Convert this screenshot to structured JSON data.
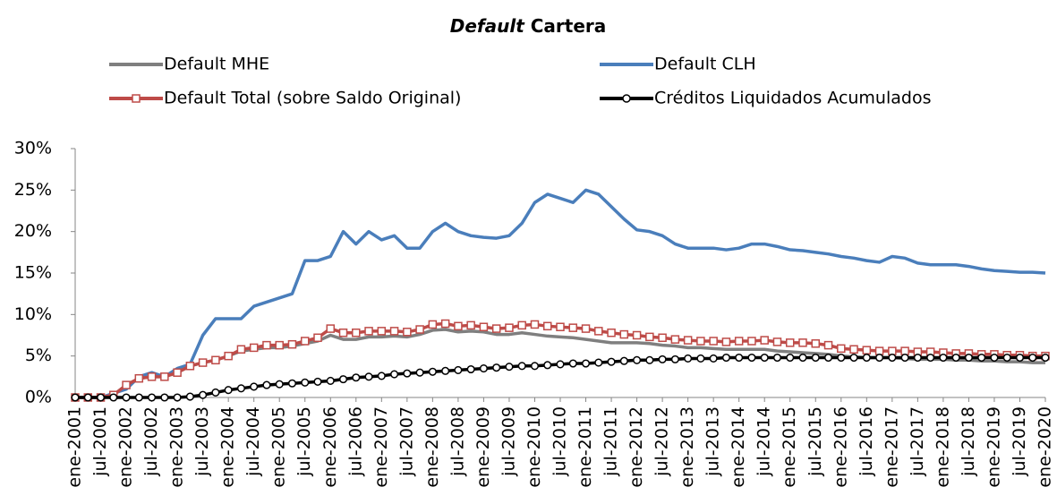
{
  "chart_data": {
    "type": "line",
    "title": [
      "Default",
      "Cartera"
    ],
    "categories": [
      "ene-2001",
      null,
      "jul-2001",
      null,
      "ene-2002",
      null,
      "jul-2002",
      null,
      "ene-2003",
      null,
      "jul-2003",
      null,
      "ene-2004",
      null,
      "jul-2004",
      null,
      "ene-2005",
      null,
      "jul-2005",
      null,
      "ene-2006",
      null,
      "jul-2006",
      null,
      "ene-2007",
      null,
      "jul-2007",
      null,
      "ene-2008",
      null,
      "jul-2008",
      null,
      "ene-2009",
      null,
      "jul-2009",
      null,
      "ene-2010",
      null,
      "jul-2010",
      null,
      "ene-2011",
      null,
      "jul-2011",
      null,
      "ene-2012",
      null,
      "jul-2012",
      null,
      "ene-2013",
      null,
      "jul-2013",
      null,
      "ene-2014",
      null,
      "jul-2014",
      null,
      "ene-2015",
      null,
      "jul-2015",
      null,
      "ene-2016",
      null,
      "jul-2016",
      null,
      "ene-2017",
      null,
      "jul-2017",
      null,
      "ene-2018",
      null,
      "jul-2018",
      null,
      "ene-2019",
      null,
      "jul-2019",
      null,
      "ene-2020"
    ],
    "series": [
      {
        "name": "Default MHE",
        "color": "#7f7f7f",
        "marker": "none",
        "values": [
          0,
          0,
          0,
          0.3,
          1.5,
          2.3,
          2.5,
          2.5,
          3,
          3.8,
          4.2,
          4.5,
          5,
          5.6,
          5.8,
          6,
          6,
          6.2,
          6.5,
          6.8,
          7.5,
          7,
          7,
          7.3,
          7.3,
          7.4,
          7.3,
          7.6,
          8.1,
          8.2,
          7.9,
          8,
          7.9,
          7.6,
          7.6,
          7.8,
          7.6,
          7.4,
          7.3,
          7.2,
          7,
          6.8,
          6.6,
          6.6,
          6.6,
          6.5,
          6.3,
          6.2,
          6,
          6,
          5.9,
          5.8,
          5.8,
          5.8,
          5.8,
          5.6,
          5.5,
          5.4,
          5.3,
          5.2,
          5,
          4.9,
          4.8,
          4.8,
          4.8,
          4.7,
          4.6,
          4.6,
          4.6,
          4.5,
          4.5,
          4.4,
          4.4,
          4.3,
          4.3,
          4.2,
          4.2
        ]
      },
      {
        "name": "Default CLH",
        "color": "#4a7ebb",
        "marker": "none",
        "values": [
          0,
          0,
          0,
          0.5,
          1,
          2.5,
          3,
          2.5,
          3.5,
          4,
          7.5,
          9.5,
          9.5,
          9.5,
          11,
          11.5,
          12,
          12.5,
          16.5,
          16.5,
          17,
          20,
          18.5,
          20,
          19,
          19.5,
          18,
          18,
          20,
          21,
          20,
          19.5,
          19.3,
          19.2,
          19.5,
          21,
          23.5,
          24.5,
          24,
          23.5,
          25,
          24.5,
          23,
          21.5,
          20.2,
          20,
          19.5,
          18.5,
          18,
          18,
          18,
          17.8,
          18,
          18.5,
          18.5,
          18.2,
          17.8,
          17.7,
          17.5,
          17.3,
          17,
          16.8,
          16.5,
          16.3,
          17,
          16.8,
          16.2,
          16,
          16,
          16,
          15.8,
          15.5,
          15.3,
          15.2,
          15.1,
          15.1,
          15
        ]
      },
      {
        "name": "Default Total (sobre Saldo Original)",
        "color": "#be4b48",
        "marker": "square",
        "values": [
          0,
          0,
          0,
          0.3,
          1.5,
          2.3,
          2.5,
          2.5,
          3,
          3.8,
          4.2,
          4.5,
          5,
          5.8,
          6,
          6.3,
          6.3,
          6.4,
          6.8,
          7.2,
          8.3,
          7.8,
          7.8,
          8,
          8,
          8,
          7.9,
          8.2,
          8.8,
          8.9,
          8.6,
          8.7,
          8.5,
          8.3,
          8.4,
          8.7,
          8.8,
          8.6,
          8.5,
          8.4,
          8.3,
          8,
          7.8,
          7.6,
          7.5,
          7.3,
          7.2,
          7,
          6.9,
          6.8,
          6.8,
          6.7,
          6.8,
          6.8,
          6.9,
          6.7,
          6.6,
          6.6,
          6.5,
          6.3,
          5.9,
          5.8,
          5.7,
          5.6,
          5.6,
          5.6,
          5.5,
          5.5,
          5.4,
          5.3,
          5.3,
          5.2,
          5.2,
          5.1,
          5.1,
          5,
          5
        ]
      },
      {
        "name": "Créditos Liquidados Acumulados",
        "color": "#000000",
        "marker": "circle",
        "values": [
          0,
          0,
          0,
          0,
          0,
          0,
          0,
          0,
          0,
          0.1,
          0.3,
          0.6,
          0.9,
          1.1,
          1.3,
          1.5,
          1.6,
          1.7,
          1.8,
          1.9,
          2,
          2.2,
          2.4,
          2.5,
          2.6,
          2.8,
          2.9,
          3,
          3.1,
          3.2,
          3.3,
          3.4,
          3.5,
          3.6,
          3.7,
          3.8,
          3.8,
          3.9,
          4,
          4.1,
          4.1,
          4.2,
          4.3,
          4.4,
          4.5,
          4.5,
          4.6,
          4.6,
          4.7,
          4.7,
          4.7,
          4.8,
          4.8,
          4.8,
          4.8,
          4.8,
          4.8,
          4.8,
          4.8,
          4.8,
          4.8,
          4.8,
          4.8,
          4.8,
          4.8,
          4.8,
          4.8,
          4.8,
          4.8,
          4.8,
          4.8,
          4.8,
          4.8,
          4.8,
          4.8,
          4.8,
          4.8
        ]
      }
    ],
    "ylim": [
      0,
      30
    ],
    "yticks": [
      {
        "value": 0,
        "label": "0%"
      },
      {
        "value": 5,
        "label": "5%"
      },
      {
        "value": 10,
        "label": "10%"
      },
      {
        "value": 15,
        "label": "15%"
      },
      {
        "value": 20,
        "label": "20%"
      },
      {
        "value": 25,
        "label": "25%"
      },
      {
        "value": 30,
        "label": "30%"
      }
    ],
    "grid": false
  }
}
